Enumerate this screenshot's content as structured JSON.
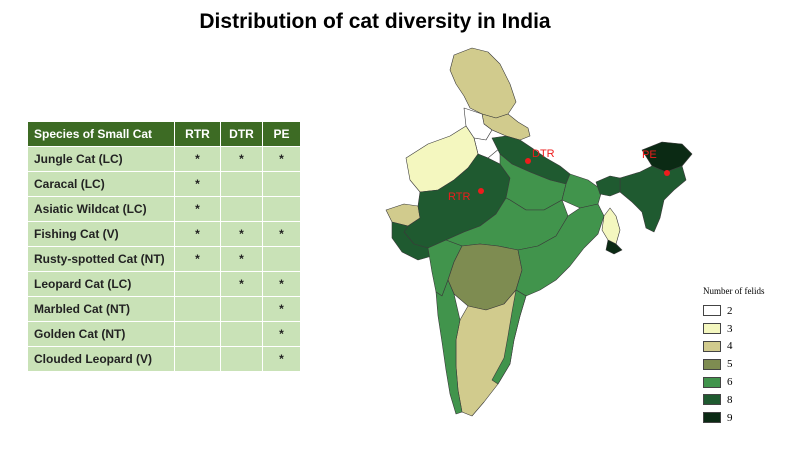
{
  "title": "Distribution of cat diversity in India",
  "table": {
    "headers": [
      "Species of Small Cat",
      "RTR",
      "DTR",
      "PE"
    ],
    "rows": [
      {
        "name": "Jungle Cat (LC)",
        "rtr": "*",
        "dtr": "*",
        "pe": "*"
      },
      {
        "name": "Caracal (LC)",
        "rtr": "*",
        "dtr": "",
        "pe": ""
      },
      {
        "name": "Asiatic Wildcat (LC)",
        "rtr": "*",
        "dtr": "",
        "pe": ""
      },
      {
        "name": "Fishing Cat (V)",
        "rtr": "*",
        "dtr": "*",
        "pe": "*"
      },
      {
        "name": "Rusty-spotted Cat (NT)",
        "rtr": "*",
        "dtr": "*",
        "pe": ""
      },
      {
        "name": "Leopard Cat (LC)",
        "rtr": "",
        "dtr": "*",
        "pe": "*"
      },
      {
        "name": "Marbled Cat (NT)",
        "rtr": "",
        "dtr": "",
        "pe": "*"
      },
      {
        "name": "Golden Cat (NT)",
        "rtr": "",
        "dtr": "",
        "pe": "*"
      },
      {
        "name": "Clouded Leopard (V)",
        "rtr": "",
        "dtr": "",
        "pe": "*"
      }
    ]
  },
  "map": {
    "sites": [
      {
        "label": "RTR",
        "color": "#ee1c1c"
      },
      {
        "label": "DTR",
        "color": "#ee1c1c"
      },
      {
        "label": "PE",
        "color": "#ee1c1c"
      }
    ],
    "fill_colors": {
      "2": "#ffffff",
      "3": "#f4f7bf",
      "4": "#d1cb8d",
      "5": "#7e8c51",
      "6": "#41944c",
      "8": "#1f5a30",
      "9": "#0b2a14"
    }
  },
  "legend": {
    "title": "Number of felids",
    "items": [
      {
        "label": "2",
        "color": "#ffffff"
      },
      {
        "label": "3",
        "color": "#f4f7bf"
      },
      {
        "label": "4",
        "color": "#d1cb8d"
      },
      {
        "label": "5",
        "color": "#7e8c51"
      },
      {
        "label": "6",
        "color": "#41944c"
      },
      {
        "label": "8",
        "color": "#1f5a30"
      },
      {
        "label": "9",
        "color": "#0b2a14"
      }
    ]
  }
}
